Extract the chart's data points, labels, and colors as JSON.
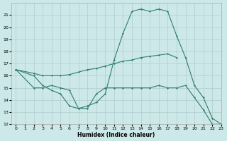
{
  "xlabel": "Humidex (Indice chaleur)",
  "background_color": "#cce8e8",
  "grid_color": "#b0cccc",
  "line_color": "#2e7d6e",
  "xlim": [
    -0.5,
    23
  ],
  "ylim": [
    12,
    22
  ],
  "yticks": [
    12,
    13,
    14,
    15,
    16,
    17,
    18,
    19,
    20,
    21
  ],
  "xticks": [
    0,
    1,
    2,
    3,
    4,
    5,
    6,
    7,
    8,
    9,
    10,
    11,
    12,
    13,
    14,
    15,
    16,
    17,
    18,
    19,
    20,
    21,
    22,
    23
  ],
  "line1_x": [
    0,
    2,
    3,
    4,
    5,
    6,
    7,
    8,
    9,
    10,
    11,
    12,
    13,
    14,
    15,
    16,
    17,
    18
  ],
  "line1_y": [
    16.5,
    16.2,
    16.0,
    16.0,
    16.0,
    16.1,
    16.3,
    16.5,
    16.6,
    16.8,
    17.0,
    17.2,
    17.3,
    17.5,
    17.6,
    17.7,
    17.8,
    17.5
  ],
  "line2_x": [
    0,
    2,
    3,
    4,
    5,
    6,
    7,
    8,
    9,
    10,
    11,
    12,
    13,
    14,
    15,
    16,
    17,
    18,
    19,
    20,
    21,
    22,
    23
  ],
  "line2_y": [
    16.5,
    15.0,
    15.0,
    15.2,
    15.0,
    14.8,
    13.3,
    13.3,
    14.5,
    15.0,
    15.0,
    15.0,
    15.0,
    15.0,
    15.0,
    15.2,
    15.0,
    15.0,
    15.2,
    14.2,
    13.2,
    12.0,
    12.0
  ],
  "line3_x": [
    0,
    2,
    3,
    4,
    5,
    6,
    7,
    8,
    9,
    10,
    11,
    12,
    13,
    14,
    15,
    16,
    17,
    18,
    19,
    20,
    21,
    22,
    23
  ],
  "line3_y": [
    16.5,
    16.0,
    15.2,
    14.8,
    14.5,
    13.5,
    13.3,
    13.5,
    13.8,
    14.5,
    17.3,
    19.5,
    21.3,
    21.5,
    21.3,
    21.5,
    21.3,
    19.3,
    17.5,
    15.2,
    14.2,
    12.5,
    12.0
  ]
}
